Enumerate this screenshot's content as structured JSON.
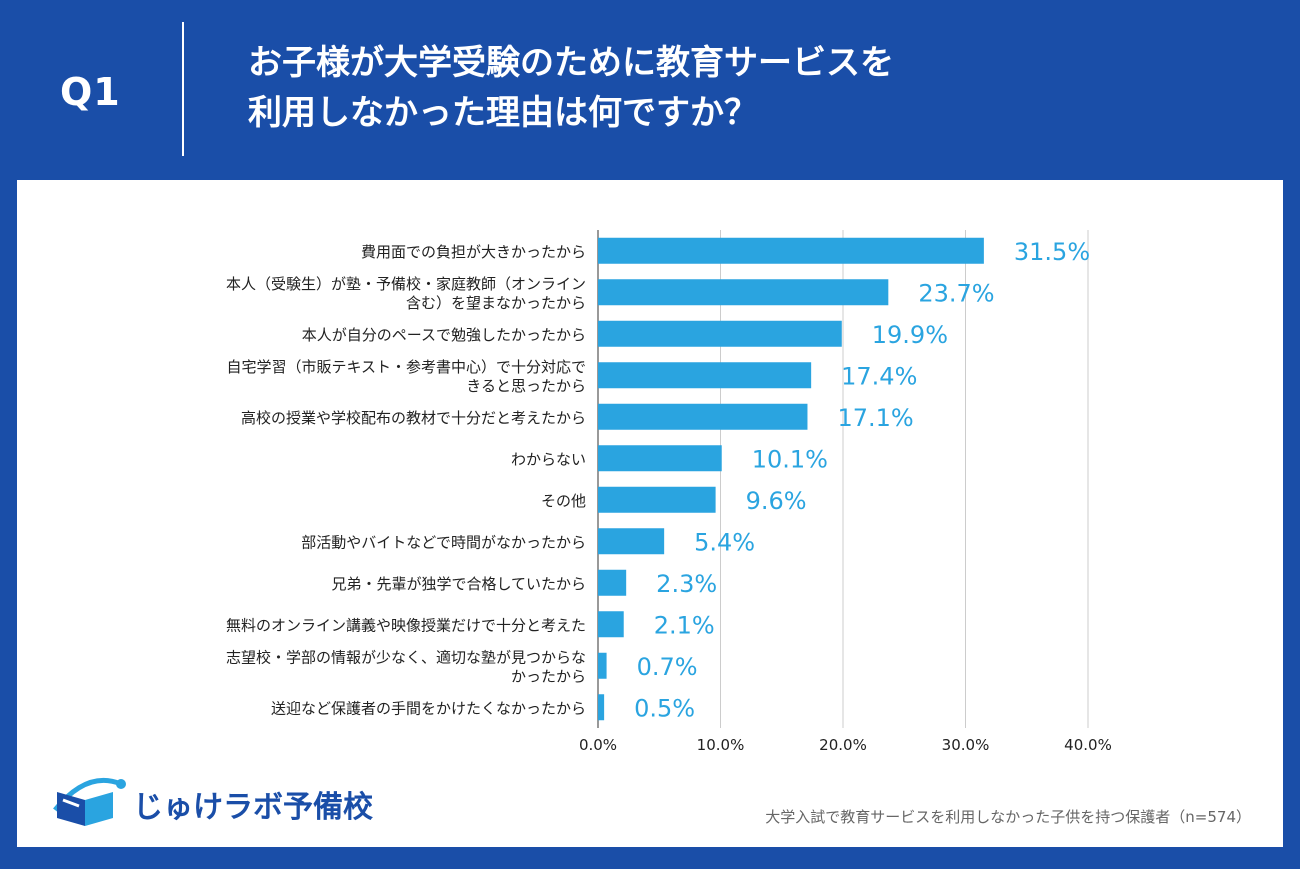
{
  "header": {
    "q_label": "Q1",
    "title_line1": "お子様が大学受験のために教育サービスを",
    "title_line2": "利用しなかった理由は何ですか？"
  },
  "brand": {
    "name": "じゅけラボ予備校",
    "icon": "book-logo-icon"
  },
  "footnote": "大学入試で教育サービスを利用しなかった子供を持つ保護者（n=574）",
  "colors": {
    "background": "#1a4ea8",
    "bar": "#2aa4e0",
    "value_label": "#2aa4e0",
    "grid": "#cccccc"
  },
  "chart_data": {
    "type": "bar",
    "orientation": "horizontal",
    "categories": [
      [
        "費用面での負担が大きかったから"
      ],
      [
        "本人（受験生）が塾・予備校・家庭教師（オンライン",
        "含む）を望まなかったから"
      ],
      [
        "本人が自分のペースで勉強したかったから"
      ],
      [
        "自宅学習（市販テキスト・参考書中心）で十分対応で",
        "きると思ったから"
      ],
      [
        "高校の授業や学校配布の教材で十分だと考えたから"
      ],
      [
        "わからない"
      ],
      [
        "その他"
      ],
      [
        "部活動やバイトなどで時間がなかったから"
      ],
      [
        "兄弟・先輩が独学で合格していたから"
      ],
      [
        "無料のオンライン講義や映像授業だけで十分と考えた"
      ],
      [
        "志望校・学部の情報が少なく、適切な塾が見つからな",
        "かったから"
      ],
      [
        "送迎など保護者の手間をかけたくなかったから"
      ]
    ],
    "values": [
      31.5,
      23.7,
      19.9,
      17.4,
      17.1,
      10.1,
      9.6,
      5.4,
      2.3,
      2.1,
      0.7,
      0.5
    ],
    "value_labels": [
      "31.5%",
      "23.7%",
      "19.9%",
      "17.4%",
      "17.1%",
      "10.1%",
      "9.6%",
      "5.4%",
      "2.3%",
      "2.1%",
      "0.7%",
      "0.5%"
    ],
    "xlim": [
      0,
      40
    ],
    "xticks": [
      0,
      10,
      20,
      30,
      40
    ],
    "xtick_labels": [
      "0.0%",
      "10.0%",
      "20.0%",
      "30.0%",
      "40.0%"
    ],
    "grid": true
  }
}
